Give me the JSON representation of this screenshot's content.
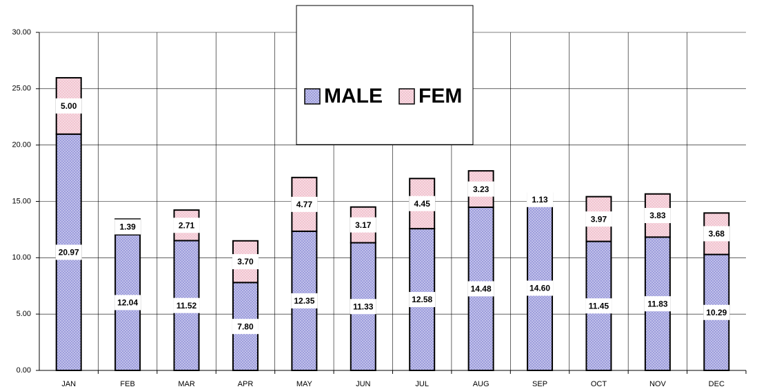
{
  "chart_data": {
    "type": "stacked-bar",
    "categories": [
      "JAN",
      "FEB",
      "MAR",
      "APR",
      "MAY",
      "JUN",
      "JUL",
      "AUG",
      "SEP",
      "OCT",
      "NOV",
      "DEC"
    ],
    "series": [
      {
        "name": "MALE",
        "color": "#9c9cdc",
        "values": [
          20.97,
          12.04,
          11.52,
          7.8,
          12.35,
          11.33,
          12.58,
          14.48,
          14.6,
          11.45,
          11.83,
          10.29
        ],
        "value_labels": [
          "20.97",
          "12.04",
          "11.52",
          "7.80",
          "12.35",
          "11.33",
          "12.58",
          "14.48",
          "14.60",
          "11.45",
          "11.83",
          "10.29"
        ]
      },
      {
        "name": "FEM",
        "color": "#f2c4d0",
        "values": [
          5.0,
          1.39,
          2.71,
          3.7,
          4.77,
          3.17,
          4.45,
          3.23,
          1.13,
          3.97,
          3.83,
          3.68
        ],
        "value_labels": [
          "5.00",
          "1.39",
          "2.71",
          "3.70",
          "4.77",
          "3.17",
          "4.45",
          "3.23",
          "1.13",
          "3.97",
          "3.83",
          "3.68"
        ]
      }
    ],
    "ylim": [
      0,
      30
    ],
    "yticks": [
      {
        "value": 0,
        "label": "0.00"
      },
      {
        "value": 5,
        "label": "5.00"
      },
      {
        "value": 10,
        "label": "10.00"
      },
      {
        "value": 15,
        "label": "15.00"
      },
      {
        "value": 20,
        "label": "20.00"
      },
      {
        "value": 25,
        "label": "25.00"
      },
      {
        "value": 30,
        "label": "30.00"
      }
    ],
    "grid": true,
    "legend": "top"
  }
}
